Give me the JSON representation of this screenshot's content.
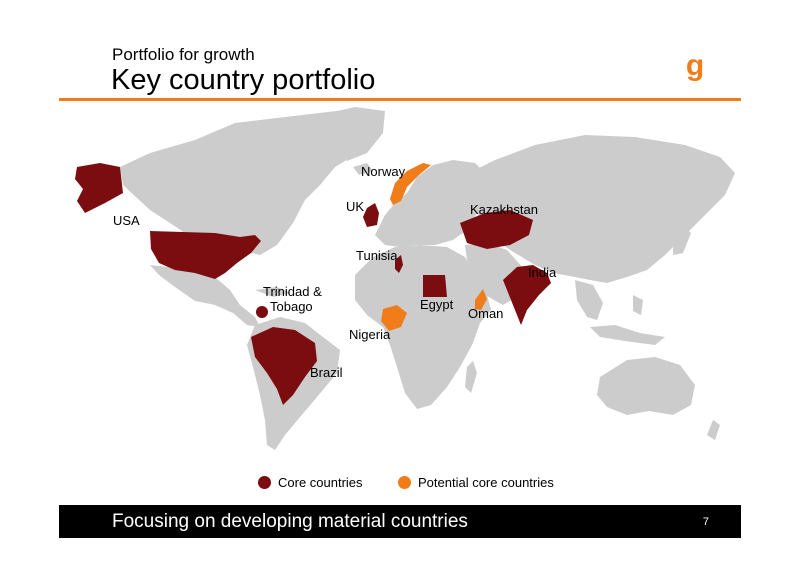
{
  "header": {
    "subtitle": "Portfolio for growth",
    "title": "Key country portfolio",
    "logo_icon": "bg-logo-icon",
    "accent_color": "#f07d1a"
  },
  "map": {
    "land_color": "#cccccc",
    "countries": [
      {
        "name": "USA",
        "status": "core"
      },
      {
        "name": "Trinidad & Tobago",
        "status": "core"
      },
      {
        "name": "Brazil",
        "status": "core"
      },
      {
        "name": "UK",
        "status": "core"
      },
      {
        "name": "Norway",
        "status": "potential"
      },
      {
        "name": "Tunisia",
        "status": "core"
      },
      {
        "name": "Egypt",
        "status": "core"
      },
      {
        "name": "Nigeria",
        "status": "potential"
      },
      {
        "name": "Oman",
        "status": "potential"
      },
      {
        "name": "Kazakhstan",
        "status": "core"
      },
      {
        "name": "India",
        "status": "core"
      }
    ],
    "labels": {
      "usa": "USA",
      "trinidad_line1": "Trinidad &",
      "trinidad_line2": "Tobago",
      "brazil": "Brazil",
      "uk": "UK",
      "norway": "Norway",
      "tunisia": "Tunisia",
      "egypt": "Egypt",
      "nigeria": "Nigeria",
      "oman": "Oman",
      "kazakhstan": "Kazakhstan",
      "india": "India"
    }
  },
  "legend": {
    "core_label": "Core countries",
    "core_color": "#7b0c10",
    "potential_label": "Potential core countries",
    "potential_color": "#f07d1a"
  },
  "footer": {
    "text": "Focusing on developing material countries",
    "page_number": "7"
  }
}
